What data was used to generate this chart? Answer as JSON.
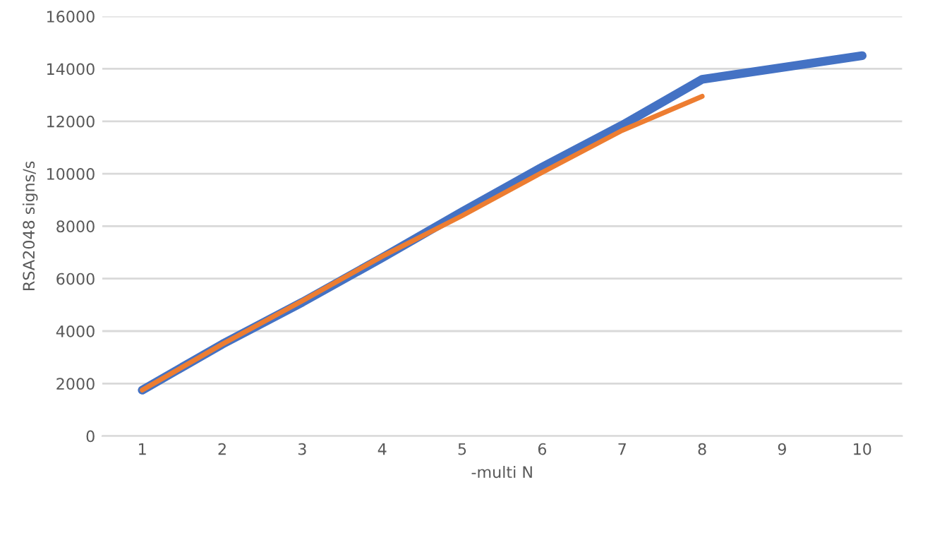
{
  "chart_data": {
    "type": "line",
    "xlabel": "-multi N",
    "ylabel": "RSA2048 signs/s",
    "categories": [
      "1",
      "2",
      "3",
      "4",
      "5",
      "6",
      "7",
      "8",
      "9",
      "10"
    ],
    "series": [
      {
        "color": "#4472c4",
        "values": [
          1750,
          3500,
          5100,
          6800,
          8550,
          10250,
          11850,
          13600,
          14050,
          14500
        ]
      },
      {
        "color": "#ed7d31",
        "values": [
          1750,
          3500,
          5150,
          6850,
          8400,
          10050,
          11650,
          12950,
          null,
          null
        ]
      }
    ],
    "ylim": [
      0,
      16000
    ],
    "yticks": [
      0,
      2000,
      4000,
      6000,
      8000,
      10000,
      12000,
      14000,
      16000
    ],
    "grid": "y"
  }
}
